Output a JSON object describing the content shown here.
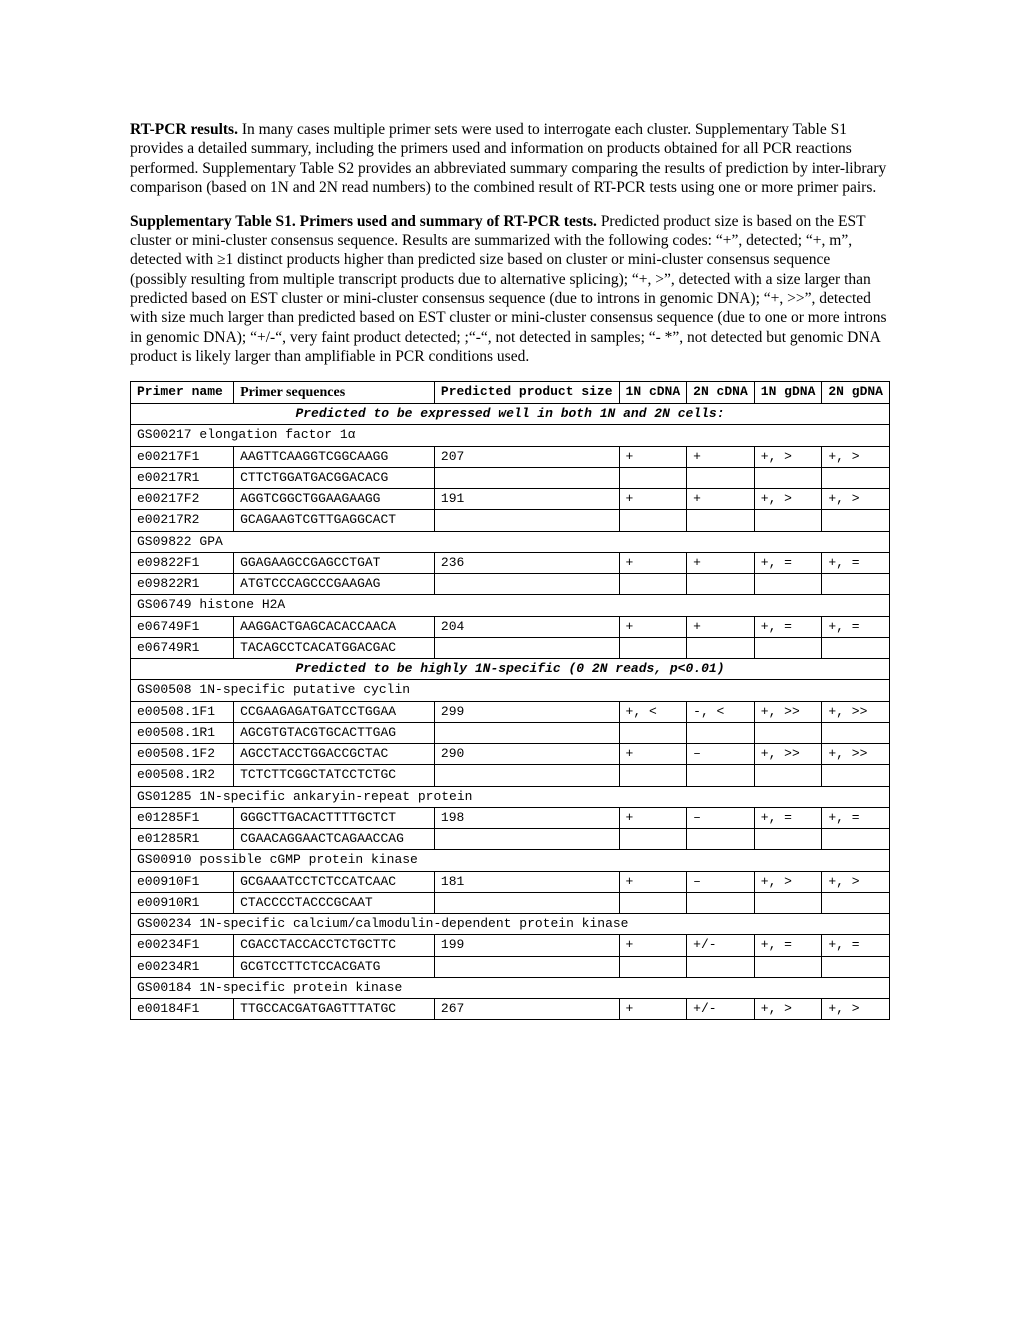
{
  "para1": {
    "strong": "RT-PCR results.",
    "text": " In many cases multiple primer sets were used to interrogate each cluster.  Supplementary Table S1 provides a detailed summary, including the primers used and information on products obtained for all PCR reactions performed.  Supplementary Table S2 provides an abbreviated summary comparing the results of prediction by inter-library comparison (based on 1N and 2N read numbers) to the combined result of RT-PCR tests using one or more primer pairs."
  },
  "para2": {
    "strong": "Supplementary Table S1.  Primers used and summary of RT-PCR tests.",
    "text": " Predicted product size is based on the EST cluster or mini-cluster consensus sequence.  Results are summarized with the following codes: “+”, detected; “+, m”, detected with ≥1 distinct products higher than predicted size based on cluster or mini-cluster consensus sequence (possibly resulting from multiple transcript products due to alternative splicing); “+, >”, detected with a size larger than predicted based on EST cluster or mini-cluster consensus sequence (due to introns in genomic DNA); “+, >>”, detected with size much larger than predicted based on EST cluster or mini-cluster consensus sequence (due to one or more introns in genomic DNA);  “+/-“, very faint product detected; ;“-“, not detected in samples; “- *”, not detected but genomic DNA product is likely larger than amplifiable in PCR conditions used."
  },
  "headers": {
    "c1": "Primer name",
    "c2": "Primer sequences",
    "c3": "Predicted product size",
    "c4": "1N cDNA",
    "c5": "2N cDNA",
    "c6": "1N gDNA",
    "c7": "2N gDNA"
  },
  "rows": [
    {
      "type": "section",
      "text": "Predicted to be expressed well in both 1N and 2N cells:"
    },
    {
      "type": "desc",
      "text": "GS00217 elongation factor 1α"
    },
    {
      "type": "data",
      "c": [
        "e00217F1",
        "AAGTTCAAGGTCGGCAAGG",
        "207",
        "+",
        "+",
        "+, >",
        "+, >"
      ]
    },
    {
      "type": "data",
      "c": [
        "e00217R1",
        "CTTCTGGATGACGGACACG",
        "",
        "",
        "",
        "",
        ""
      ]
    },
    {
      "type": "data",
      "c": [
        "e00217F2",
        "AGGTCGGCTGGAAGAAGG",
        "191",
        "+",
        "+",
        "+, >",
        "+, >"
      ]
    },
    {
      "type": "data",
      "c": [
        "e00217R2",
        "GCAGAAGTCGTTGAGGCACT",
        "",
        "",
        "",
        "",
        ""
      ]
    },
    {
      "type": "desc",
      "text": "GS09822 GPA"
    },
    {
      "type": "data",
      "c": [
        "e09822F1",
        "GGAGAAGCCGAGCCTGAT",
        "236",
        "+",
        "+",
        "+, =",
        "+, ="
      ]
    },
    {
      "type": "data",
      "c": [
        "e09822R1",
        "ATGTCCCAGCCCGAAGAG",
        "",
        "",
        "",
        "",
        ""
      ]
    },
    {
      "type": "desc",
      "text": "GS06749 histone H2A"
    },
    {
      "type": "data",
      "c": [
        "e06749F1",
        "AAGGACTGAGCACACCAACA",
        "204",
        "+",
        "+",
        "+, =",
        "+, ="
      ]
    },
    {
      "type": "data",
      "c": [
        "e06749R1",
        "TACAGCCTCACATGGACGAC",
        "",
        "",
        "",
        "",
        ""
      ]
    },
    {
      "type": "section",
      "text": "Predicted to be highly 1N-specific (0 2N reads, p<0.01)"
    },
    {
      "type": "desc",
      "text": "GS00508 1N-specific putative cyclin"
    },
    {
      "type": "data",
      "c": [
        "e00508.1F1",
        "CCGAAGAGATGATCCTGGAA",
        "299",
        "+, <",
        "-, <",
        "+, >>",
        "+, >>"
      ]
    },
    {
      "type": "data",
      "c": [
        "e00508.1R1",
        "AGCGTGTACGTGCACTTGAG",
        "",
        "",
        "",
        "",
        ""
      ]
    },
    {
      "type": "data",
      "c": [
        "e00508.1F2",
        "AGCCTACCTGGACCGCTAC",
        "290",
        "+",
        "–",
        "+, >>",
        "+, >>"
      ]
    },
    {
      "type": "data",
      "c": [
        "e00508.1R2",
        "TCTCTTCGGCTATCCTCTGC",
        "",
        "",
        "",
        "",
        ""
      ]
    },
    {
      "type": "desc",
      "text": "GS01285 1N-specific ankaryin-repeat protein"
    },
    {
      "type": "data",
      "c": [
        "e01285F1",
        "GGGCTTGACACTTTTGCTCT",
        "198",
        "+",
        "–",
        "+, =",
        "+, ="
      ]
    },
    {
      "type": "data",
      "c": [
        "e01285R1",
        "CGAACAGGAACTCAGAACCAG",
        "",
        "",
        "",
        "",
        ""
      ]
    },
    {
      "type": "desc",
      "text": "GS00910 possible cGMP protein kinase"
    },
    {
      "type": "data",
      "c": [
        "e00910F1",
        "GCGAAATCCTCTCCATCAAC",
        "181",
        "+",
        "–",
        "+, >",
        "+, >"
      ]
    },
    {
      "type": "data",
      "c": [
        "e00910R1",
        "CTACCCCTACCCGCAAT",
        "",
        "",
        "",
        "",
        ""
      ]
    },
    {
      "type": "desc",
      "text": "GS00234 1N-specific calcium/calmodulin-dependent protein kinase"
    },
    {
      "type": "data",
      "c": [
        "e00234F1",
        "CGACCTACCACCTCTGCTTC",
        "199",
        "+",
        "+/-",
        "+, =",
        "+, ="
      ]
    },
    {
      "type": "data",
      "c": [
        "e00234R1",
        "GCGTCCTTCTCCACGATG",
        "",
        "",
        "",
        "",
        ""
      ]
    },
    {
      "type": "desc",
      "text": "GS00184 1N-specific protein kinase"
    },
    {
      "type": "data",
      "c": [
        "e00184F1",
        "TTGCCACGATGAGTTTATGC",
        "267",
        "+",
        "+/-",
        "+, >",
        "+, >"
      ]
    }
  ]
}
